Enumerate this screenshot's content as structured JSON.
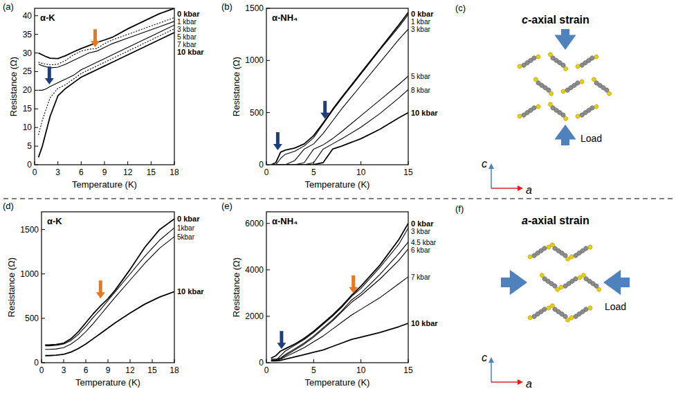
{
  "chart_data": [
    {
      "type": "line",
      "panel_label": "(a)",
      "title": "α-K",
      "xlabel": "Temperature (K)",
      "ylabel": "Resistance (Ω)",
      "xlim": [
        0,
        18
      ],
      "ylim": [
        0,
        42
      ],
      "xticks": [
        0,
        3,
        6,
        9,
        12,
        15,
        18
      ],
      "yticks": [
        0,
        5,
        10,
        15,
        20,
        25,
        30,
        35,
        40
      ],
      "x": [
        0.5,
        1,
        1.5,
        2,
        3,
        4,
        5,
        6,
        7,
        8,
        9,
        10,
        12,
        14,
        16,
        18
      ],
      "series": [
        {
          "name": "0 kbar",
          "color": "#000000",
          "line_style": "solid",
          "values": [
            30,
            29.5,
            29,
            28.6,
            28.5,
            29.3,
            30.3,
            31.2,
            32,
            32.8,
            33.5,
            34.2,
            36.5,
            38.5,
            40.5,
            42
          ]
        },
        {
          "name": "1 kbar",
          "color": "#000000",
          "line_style": "dotted",
          "values": [
            27.5,
            27.2,
            27,
            26.8,
            27,
            28,
            29.5,
            30.5,
            31,
            31.2,
            32.5,
            33.5,
            35,
            36.5,
            38,
            39.5
          ]
        },
        {
          "name": "3 kbar",
          "color": "#000000",
          "line_style": "solid",
          "values": [
            27,
            26.6,
            26.3,
            26,
            26.2,
            27,
            28,
            29,
            30,
            30.5,
            31.5,
            32.5,
            34,
            35.5,
            37,
            38.5
          ]
        },
        {
          "name": "5 kbar",
          "color": "#000000",
          "line_style": "solid",
          "values": [
            20,
            20,
            20.4,
            21,
            22,
            23,
            24,
            25.5,
            26.5,
            27.5,
            28.5,
            29.5,
            31.5,
            33.5,
            35.5,
            37.5
          ]
        },
        {
          "name": "7 kbar",
          "color": "#000000",
          "line_style": "dotted",
          "values": [
            8,
            12,
            15,
            18,
            20.5,
            21.5,
            23,
            24.5,
            25.5,
            26.5,
            27.5,
            28.5,
            30.5,
            32.5,
            34.5,
            36.5
          ]
        },
        {
          "name": "10 kbar",
          "color": "#000000",
          "line_style": "solid",
          "values": [
            2,
            5,
            9,
            13,
            18.5,
            20.5,
            22,
            23.5,
            24.5,
            25.5,
            26.5,
            27.5,
            29.5,
            31.5,
            33.5,
            35.5
          ]
        }
      ],
      "annotations": [
        {
          "x": 7.8,
          "y": 31,
          "color": "#e87722"
        },
        {
          "x": 1.9,
          "y": 21,
          "color": "#1f3f7a"
        }
      ]
    },
    {
      "type": "line",
      "panel_label": "(b)",
      "title": "α-NH₄",
      "xlabel": "Temperature (K)",
      "ylabel": "Resistance (Ω)",
      "xlim": [
        0,
        15
      ],
      "ylim": [
        0,
        1500
      ],
      "xticks": [
        0,
        5,
        10,
        15
      ],
      "yticks": [
        0,
        500,
        1000,
        1500
      ],
      "x": [
        0.5,
        1,
        1.5,
        2,
        3,
        4,
        5,
        6,
        7,
        8,
        10,
        12,
        14,
        15
      ],
      "series": [
        {
          "name": "0 kbar",
          "color": "#000000",
          "line_style": "solid",
          "values": [
            0,
            20,
            120,
            140,
            160,
            200,
            280,
            400,
            530,
            650,
            880,
            1110,
            1340,
            1460
          ]
        },
        {
          "name": "1 kbar",
          "color": "#000000",
          "line_style": "solid",
          "values": [
            0,
            0,
            60,
            100,
            130,
            180,
            260,
            390,
            520,
            640,
            870,
            1100,
            1320,
            1440
          ]
        },
        {
          "name": "3 kbar",
          "color": "#000000",
          "line_style": "solid",
          "values": [
            0,
            0,
            0,
            0,
            40,
            150,
            200,
            300,
            420,
            540,
            760,
            980,
            1200,
            1300
          ]
        },
        {
          "name": "5 kbar",
          "color": "#000000",
          "line_style": "solid",
          "values": [
            0,
            0,
            0,
            0,
            0,
            20,
            150,
            190,
            250,
            320,
            470,
            620,
            770,
            850
          ]
        },
        {
          "name": "8 kbar",
          "color": "#000000",
          "line_style": "solid",
          "values": [
            0,
            0,
            0,
            0,
            0,
            0,
            20,
            150,
            200,
            250,
            360,
            490,
            640,
            720
          ]
        },
        {
          "name": "10 kbar",
          "color": "#000000",
          "line_style": "solid",
          "values": [
            0,
            0,
            0,
            0,
            0,
            0,
            0,
            20,
            150,
            180,
            250,
            340,
            450,
            500
          ]
        }
      ],
      "annotations": [
        {
          "x": 1.2,
          "y": 120,
          "color": "#1f3f7a"
        },
        {
          "x": 6.2,
          "y": 420,
          "color": "#1f3f7a"
        }
      ]
    },
    {
      "type": "line",
      "panel_label": "(d)",
      "title": "α-K",
      "xlabel": "Temperature (K)",
      "ylabel": "Resistance (Ω)",
      "xlim": [
        0,
        18
      ],
      "ylim": [
        0,
        1700
      ],
      "xticks": [
        0,
        3,
        6,
        9,
        12,
        15,
        18
      ],
      "yticks": [
        0,
        500,
        1000,
        1500
      ],
      "x": [
        0.5,
        1,
        2,
        3,
        4,
        5,
        6,
        7,
        8,
        9,
        10,
        12,
        14,
        16,
        18
      ],
      "series": [
        {
          "name": "0 kbar",
          "color": "#000000",
          "line_style": "solid",
          "values": [
            200,
            200,
            205,
            220,
            270,
            350,
            450,
            550,
            640,
            720,
            820,
            1050,
            1300,
            1500,
            1620
          ]
        },
        {
          "name": "1kbar",
          "color": "#000000",
          "line_style": "solid",
          "values": [
            190,
            190,
            195,
            210,
            250,
            320,
            410,
            510,
            600,
            700,
            800,
            1000,
            1200,
            1380,
            1520
          ]
        },
        {
          "name": "5kbar",
          "color": "#000000",
          "line_style": "solid",
          "values": [
            150,
            150,
            155,
            170,
            210,
            270,
            350,
            440,
            540,
            640,
            740,
            930,
            1120,
            1290,
            1420
          ]
        },
        {
          "name": "10 kbar",
          "color": "#000000",
          "line_style": "solid",
          "values": [
            80,
            80,
            85,
            95,
            120,
            160,
            210,
            270,
            330,
            390,
            450,
            560,
            660,
            740,
            800
          ]
        }
      ],
      "annotations": [
        {
          "x": 8,
          "y": 700,
          "color": "#e87722"
        }
      ]
    },
    {
      "type": "line",
      "panel_label": "(e)",
      "title": "α-NH₄",
      "xlabel": "Temperature (K)",
      "ylabel": "Resistance (Ω)",
      "xlim": [
        0,
        15
      ],
      "ylim": [
        0,
        6500
      ],
      "xticks": [
        0,
        5,
        10,
        15
      ],
      "yticks": [
        0,
        2000,
        4000,
        6000
      ],
      "x": [
        0.5,
        1,
        1.5,
        2,
        3,
        4,
        5,
        6,
        7,
        8,
        9,
        10,
        12,
        14,
        15
      ],
      "series": [
        {
          "name": "0 kbar",
          "color": "#000000",
          "line_style": "solid",
          "values": [
            200,
            300,
            500,
            600,
            800,
            1050,
            1350,
            1700,
            2050,
            2450,
            2900,
            3300,
            4200,
            5300,
            6000
          ]
        },
        {
          "name": "3 kbar",
          "color": "#000000",
          "line_style": "solid",
          "values": [
            100,
            100,
            300,
            500,
            750,
            1000,
            1300,
            1650,
            2000,
            2400,
            2850,
            3200,
            4100,
            5100,
            5800
          ]
        },
        {
          "name": "4.5 kbar",
          "color": "#000000",
          "line_style": "solid",
          "values": [
            150,
            150,
            200,
            350,
            600,
            850,
            1150,
            1500,
            1850,
            2250,
            2700,
            3000,
            3800,
            4700,
            5200
          ]
        },
        {
          "name": "6 kbar",
          "color": "#000000",
          "line_style": "solid",
          "values": [
            150,
            150,
            180,
            300,
            550,
            800,
            1100,
            1450,
            1800,
            2200,
            2600,
            2900,
            3600,
            4400,
            4900
          ]
        },
        {
          "name": "7 kbar",
          "color": "#000000",
          "line_style": "solid",
          "values": [
            100,
            100,
            150,
            250,
            450,
            650,
            900,
            1150,
            1450,
            1750,
            2050,
            2300,
            2800,
            3400,
            3700
          ]
        },
        {
          "name": "10 kbar",
          "color": "#000000",
          "line_style": "solid",
          "values": [
            80,
            80,
            100,
            150,
            250,
            350,
            450,
            550,
            700,
            850,
            1000,
            1100,
            1300,
            1550,
            1700
          ]
        }
      ],
      "annotations": [
        {
          "x": 1.6,
          "y": 500,
          "color": "#1f3f7a"
        },
        {
          "x": 9.2,
          "y": 2900,
          "color": "#e87722"
        }
      ]
    }
  ],
  "diagrams": [
    {
      "panel_label": "(c)",
      "title": "c-axial strain",
      "load": "Load",
      "axes": [
        "c",
        "a"
      ]
    },
    {
      "panel_label": "(f)",
      "title": "a-axial strain",
      "load": "Load",
      "axes": [
        "c",
        "a"
      ]
    }
  ]
}
